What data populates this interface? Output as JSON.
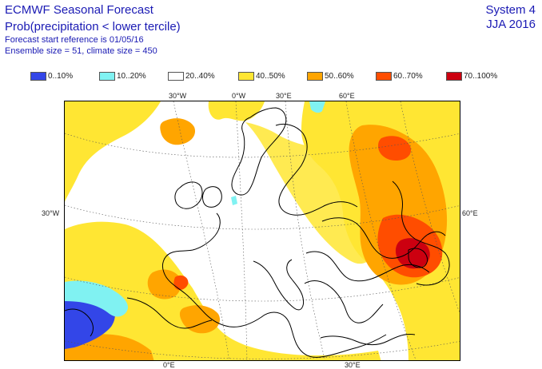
{
  "header": {
    "title": "ECMWF Seasonal Forecast",
    "subtitle": "Prob(precipitation < lower tercile)",
    "forecast_ref": "Forecast start reference is 01/05/16",
    "ensemble": "Ensemble size = 51, climate size = 450",
    "system": "System 4",
    "period": "JJA 2016"
  },
  "legend": [
    {
      "label": "0..10%",
      "color": "#3346e8"
    },
    {
      "label": "10..20%",
      "color": "#80f2f2"
    },
    {
      "label": "20..40%",
      "color": "#ffffff"
    },
    {
      "label": "40..50%",
      "color": "#ffe633"
    },
    {
      "label": "50..60%",
      "color": "#ffa500"
    },
    {
      "label": "60..70%",
      "color": "#ff4d00"
    },
    {
      "label": "70..100%",
      "color": "#cc0010"
    }
  ],
  "map": {
    "top_labels": [
      "30°W",
      "0°W",
      "30°E",
      "60°E"
    ],
    "left_label": "30°W",
    "right_label": "60°E",
    "bottom_labels": [
      "0°E",
      "30°E"
    ]
  }
}
